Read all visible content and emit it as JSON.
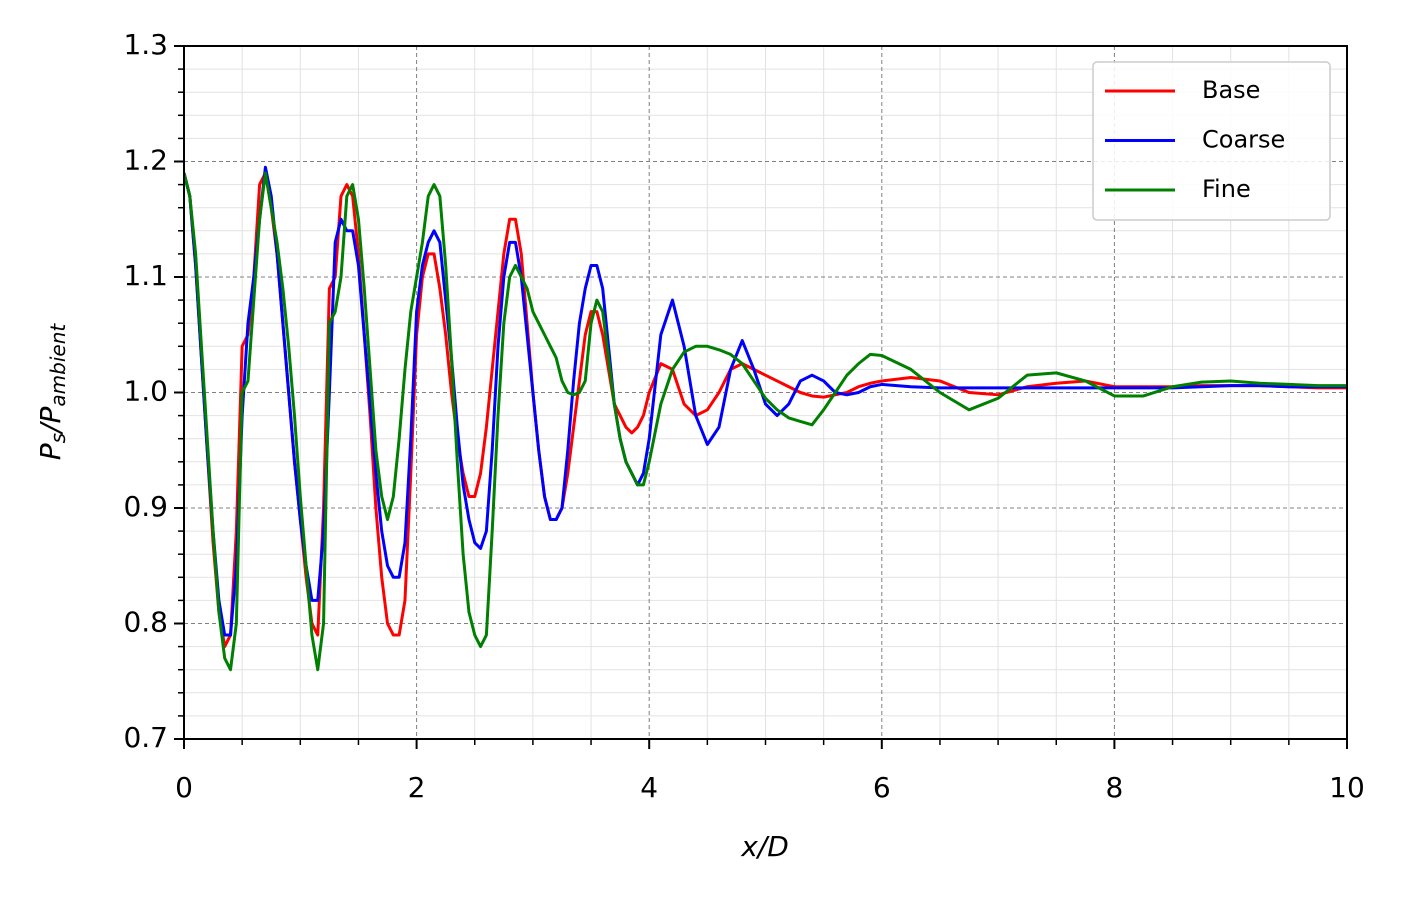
{
  "chart_data": {
    "type": "line",
    "x_label": "x/D",
    "y_label": [
      "P",
      "s",
      "/P",
      "ambient"
    ],
    "xlim": [
      0,
      10
    ],
    "ylim": [
      0.7,
      1.3
    ],
    "xticks": [
      0,
      2,
      4,
      6,
      8,
      10
    ],
    "yticks": [
      0.7,
      0.8,
      0.9,
      {
        "value": 1.0,
        "label": "1.0"
      },
      1.1,
      1.2,
      1.3
    ],
    "xminor": [
      0.5,
      1,
      1.5,
      2.5,
      3,
      3.5,
      4.5,
      5,
      5.5,
      6.5,
      7,
      7.5,
      8.5,
      9,
      9.5
    ],
    "yminor": [
      0.72,
      0.74,
      0.76,
      0.78,
      0.82,
      0.84,
      0.86,
      0.88,
      0.92,
      0.94,
      0.96,
      0.98,
      1.02,
      1.04,
      1.06,
      1.08,
      1.12,
      1.14,
      1.16,
      1.18,
      1.22,
      1.24,
      1.26,
      1.28
    ],
    "grid": true,
    "legend": "upper right",
    "x": [
      0,
      0.05,
      0.1,
      0.15,
      0.2,
      0.25,
      0.3,
      0.35,
      0.4,
      0.45,
      0.5,
      0.55,
      0.6,
      0.65,
      0.7,
      0.75,
      0.8,
      0.85,
      0.9,
      0.95,
      1,
      1.05,
      1.1,
      1.15,
      1.2,
      1.25,
      1.3,
      1.35,
      1.4,
      1.45,
      1.5,
      1.55,
      1.6,
      1.65,
      1.7,
      1.75,
      1.8,
      1.85,
      1.9,
      1.95,
      2,
      2.05,
      2.1,
      2.15,
      2.2,
      2.25,
      2.3,
      2.35,
      2.4,
      2.45,
      2.5,
      2.55,
      2.6,
      2.65,
      2.7,
      2.75,
      2.8,
      2.85,
      2.9,
      2.95,
      3,
      3.05,
      3.1,
      3.15,
      3.2,
      3.25,
      3.3,
      3.35,
      3.4,
      3.45,
      3.5,
      3.55,
      3.6,
      3.65,
      3.7,
      3.75,
      3.8,
      3.85,
      3.9,
      3.95,
      4,
      4.1,
      4.2,
      4.3,
      4.4,
      4.5,
      4.6,
      4.7,
      4.8,
      4.9,
      5,
      5.1,
      5.2,
      5.3,
      5.4,
      5.5,
      5.6,
      5.7,
      5.8,
      5.9,
      6,
      6.25,
      6.5,
      6.75,
      7,
      7.25,
      7.5,
      7.75,
      8,
      8.25,
      8.5,
      8.75,
      9,
      9.25,
      9.5,
      9.75,
      10
    ],
    "series": [
      {
        "name": "Base",
        "color": "#ff0000",
        "values": [
          1.19,
          1.17,
          1.11,
          1.03,
          0.95,
          0.87,
          0.81,
          0.78,
          0.79,
          0.88,
          1.04,
          1.05,
          1.1,
          1.18,
          1.19,
          1.16,
          1.12,
          1.06,
          1.0,
          0.94,
          0.89,
          0.84,
          0.8,
          0.79,
          0.9,
          1.09,
          1.1,
          1.17,
          1.18,
          1.17,
          1.12,
          1.05,
          0.98,
          0.9,
          0.84,
          0.8,
          0.79,
          0.79,
          0.82,
          0.93,
          1.05,
          1.1,
          1.12,
          1.12,
          1.09,
          1.05,
          1.0,
          0.96,
          0.93,
          0.91,
          0.91,
          0.93,
          0.97,
          1.02,
          1.07,
          1.12,
          1.15,
          1.15,
          1.12,
          1.06,
          1.0,
          0.95,
          0.91,
          0.89,
          0.89,
          0.9,
          0.93,
          0.97,
          1.01,
          1.05,
          1.07,
          1.07,
          1.05,
          1.02,
          0.99,
          0.98,
          0.97,
          0.965,
          0.97,
          0.98,
          1.0,
          1.025,
          1.02,
          0.99,
          0.98,
          0.985,
          1.0,
          1.02,
          1.025,
          1.02,
          1.015,
          1.01,
          1.005,
          1.0,
          0.997,
          0.996,
          0.998,
          1.0,
          1.005,
          1.008,
          1.01,
          1.013,
          1.01,
          1.0,
          0.998,
          1.005,
          1.008,
          1.01,
          1.005,
          1.005,
          1.005,
          1.006,
          1.006,
          1.006,
          1.005,
          1.004,
          1.004
        ]
      },
      {
        "name": "Coarse",
        "color": "#0000ff",
        "values": [
          1.19,
          1.17,
          1.11,
          1.03,
          0.95,
          0.88,
          0.82,
          0.79,
          0.79,
          0.85,
          0.98,
          1.06,
          1.1,
          1.15,
          1.195,
          1.17,
          1.12,
          1.06,
          1.0,
          0.94,
          0.89,
          0.85,
          0.82,
          0.82,
          0.88,
          1.0,
          1.13,
          1.15,
          1.14,
          1.14,
          1.11,
          1.05,
          0.99,
          0.93,
          0.88,
          0.85,
          0.84,
          0.84,
          0.87,
          0.96,
          1.07,
          1.11,
          1.13,
          1.14,
          1.13,
          1.08,
          1.03,
          0.97,
          0.92,
          0.89,
          0.87,
          0.865,
          0.88,
          0.95,
          1.04,
          1.1,
          1.13,
          1.13,
          1.1,
          1.05,
          1.0,
          0.95,
          0.91,
          0.89,
          0.89,
          0.9,
          0.95,
          1.01,
          1.06,
          1.09,
          1.11,
          1.11,
          1.09,
          1.04,
          0.99,
          0.96,
          0.94,
          0.93,
          0.92,
          0.93,
          0.96,
          1.05,
          1.08,
          1.04,
          0.98,
          0.955,
          0.97,
          1.02,
          1.045,
          1.02,
          0.99,
          0.98,
          0.99,
          1.01,
          1.015,
          1.01,
          1.0,
          0.998,
          1.0,
          1.005,
          1.007,
          1.005,
          1.004,
          1.004,
          1.004,
          1.004,
          1.004,
          1.004,
          1.004,
          1.004,
          1.004,
          1.005,
          1.006,
          1.006,
          1.005,
          1.005,
          1.005
        ]
      },
      {
        "name": "Fine",
        "color": "#008000",
        "values": [
          1.19,
          1.17,
          1.12,
          1.04,
          0.96,
          0.88,
          0.81,
          0.77,
          0.76,
          0.8,
          1.0,
          1.01,
          1.08,
          1.15,
          1.19,
          1.16,
          1.13,
          1.09,
          1.04,
          0.98,
          0.91,
          0.85,
          0.79,
          0.76,
          0.8,
          1.06,
          1.07,
          1.1,
          1.17,
          1.18,
          1.15,
          1.09,
          1.02,
          0.95,
          0.91,
          0.89,
          0.91,
          0.96,
          1.02,
          1.07,
          1.1,
          1.13,
          1.17,
          1.18,
          1.17,
          1.11,
          1.03,
          0.94,
          0.86,
          0.81,
          0.79,
          0.78,
          0.79,
          0.88,
          0.98,
          1.06,
          1.1,
          1.11,
          1.1,
          1.09,
          1.07,
          1.06,
          1.05,
          1.04,
          1.03,
          1.01,
          1.0,
          0.998,
          1.0,
          1.01,
          1.06,
          1.08,
          1.07,
          1.03,
          0.99,
          0.96,
          0.94,
          0.93,
          0.92,
          0.92,
          0.94,
          0.99,
          1.02,
          1.035,
          1.04,
          1.04,
          1.037,
          1.033,
          1.025,
          1.01,
          0.995,
          0.985,
          0.978,
          0.975,
          0.972,
          0.985,
          1.0,
          1.015,
          1.025,
          1.033,
          1.032,
          1.02,
          1.0,
          0.985,
          0.995,
          1.015,
          1.017,
          1.01,
          0.997,
          0.997,
          1.005,
          1.009,
          1.01,
          1.008,
          1.007,
          1.006,
          1.006
        ]
      }
    ]
  }
}
